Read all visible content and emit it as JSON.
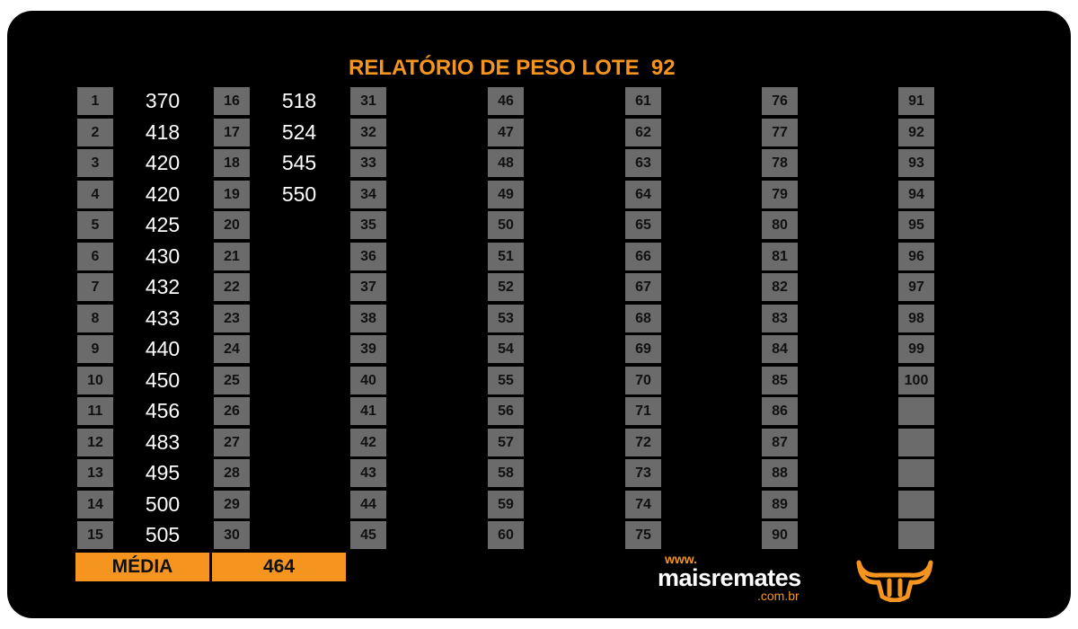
{
  "report": {
    "title": "RELATÓRIO DE PESO LOTE  92",
    "weights": [
      "370",
      "418",
      "420",
      "420",
      "425",
      "430",
      "432",
      "433",
      "440",
      "450",
      "456",
      "483",
      "495",
      "500",
      "505",
      "518",
      "524",
      "545",
      "550"
    ],
    "average_label": "MÉDIA",
    "average_value": "464"
  },
  "brand": {
    "www": "www.",
    "name": "maisremates",
    "domain": ".com.br",
    "icon": "bull-head-icon"
  },
  "colors": {
    "background": "#000000",
    "accent": "#f5951f",
    "cell": "#6b6b6b"
  }
}
